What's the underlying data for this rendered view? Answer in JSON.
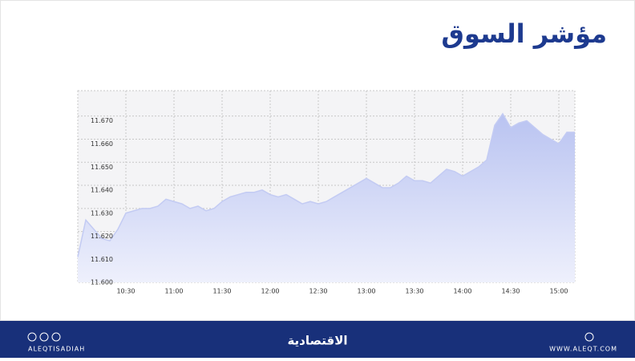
{
  "chart_data": {
    "type": "area",
    "title": "مؤشر السوق",
    "x": [
      "10:00",
      "10:05",
      "10:10",
      "10:15",
      "10:20",
      "10:25",
      "10:30",
      "10:35",
      "10:40",
      "10:45",
      "10:50",
      "10:55",
      "11:00",
      "11:05",
      "11:10",
      "11:15",
      "11:20",
      "11:25",
      "11:30",
      "11:35",
      "11:40",
      "11:45",
      "11:50",
      "11:55",
      "12:00",
      "12:05",
      "12:10",
      "12:15",
      "12:20",
      "12:25",
      "12:30",
      "12:35",
      "12:40",
      "12:45",
      "12:50",
      "12:55",
      "13:00",
      "13:05",
      "13:10",
      "13:15",
      "13:20",
      "13:25",
      "13:30",
      "13:35",
      "13:40",
      "13:45",
      "13:50",
      "13:55",
      "14:00",
      "14:05",
      "14:10",
      "14:15",
      "14:20",
      "14:25",
      "14:30",
      "14:35",
      "14:40",
      "14:45",
      "14:50",
      "14:55",
      "15:00",
      "15:05",
      "15:10"
    ],
    "values": [
      11.609,
      11.625,
      11.621,
      11.617,
      11.616,
      11.621,
      11.628,
      11.629,
      11.63,
      11.63,
      11.631,
      11.634,
      11.633,
      11.632,
      11.63,
      11.631,
      11.629,
      11.63,
      11.633,
      11.635,
      11.636,
      11.637,
      11.637,
      11.638,
      11.636,
      11.635,
      11.636,
      11.634,
      11.632,
      11.633,
      11.632,
      11.633,
      11.635,
      11.637,
      11.639,
      11.641,
      11.643,
      11.641,
      11.639,
      11.639,
      11.641,
      11.644,
      11.642,
      11.642,
      11.641,
      11.644,
      11.647,
      11.646,
      11.644,
      11.646,
      11.648,
      11.651,
      11.666,
      11.671,
      11.665,
      11.667,
      11.668,
      11.665,
      11.662,
      11.66,
      11.658,
      11.663,
      11.663
    ],
    "color": "#c3cbf3",
    "xlim": [
      "10:00",
      "15:10"
    ],
    "xticks": [
      "10:30",
      "11:00",
      "11:30",
      "12:00",
      "12:30",
      "13:00",
      "13:30",
      "14:00",
      "14:30",
      "15:00"
    ],
    "ylim": [
      11.598,
      11.681
    ],
    "yticks": [
      {
        "value": 11.6,
        "label": "11.600"
      },
      {
        "value": 11.61,
        "label": "11.610"
      },
      {
        "value": 11.62,
        "label": "11.620"
      },
      {
        "value": 11.63,
        "label": "11.630"
      },
      {
        "value": 11.64,
        "label": "11.640"
      },
      {
        "value": 11.65,
        "label": "11.650"
      },
      {
        "value": 11.66,
        "label": "11.660"
      },
      {
        "value": 11.67,
        "label": "11.670"
      }
    ],
    "grid": true
  },
  "footer": {
    "social": "ALEQTISADIAH",
    "logo": "الاقتصادية",
    "website": "WWW.ALEQT.COM"
  }
}
